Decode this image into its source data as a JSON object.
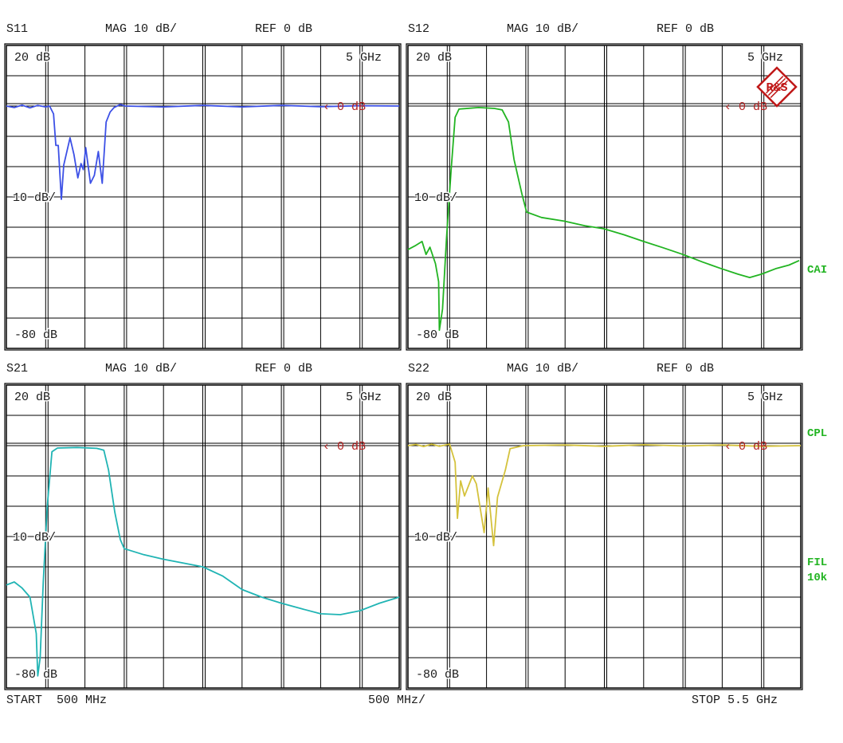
{
  "colors": {
    "grid": "#000000",
    "ref_marker": "#b22222",
    "side_labels": "#22b422"
  },
  "footer": {
    "start": "START  500 MHz",
    "span": "500 MHz/",
    "stop": "STOP 5.5 GHz"
  },
  "side_labels": {
    "cal": "CAI",
    "cpl": "CPL",
    "fil": "FIL",
    "fil_bw": "10k"
  },
  "logo": {
    "text": "R&S",
    "color": "#c01818"
  },
  "chart_data": [
    {
      "type": "line",
      "param": "S11",
      "format": "MAG 10 dB/",
      "ref": "REF 0 dB",
      "top_label": "20 dB",
      "scale_label": "10 dB/",
      "bottom_label": "-80 dB",
      "marker_label": "5 GHz",
      "ref_marker": "0 dB",
      "xlim": [
        0.5,
        5.5
      ],
      "ylim": [
        -80,
        20
      ],
      "xunit": "GHz",
      "yunit": "dB",
      "grid": true,
      "color": "#3c50e6",
      "x": [
        0.5,
        0.6,
        0.7,
        0.8,
        0.9,
        1.0,
        1.05,
        1.1,
        1.13,
        1.16,
        1.2,
        1.23,
        1.31,
        1.36,
        1.41,
        1.45,
        1.48,
        1.51,
        1.57,
        1.62,
        1.67,
        1.72,
        1.77,
        1.82,
        1.87,
        1.95,
        2.01,
        2.5,
        3.0,
        3.5,
        4.0,
        4.5,
        5.0,
        5.5
      ],
      "y": [
        0,
        -0.5,
        0.3,
        -0.6,
        0.2,
        -0.3,
        0,
        -2.6,
        -13,
        -13,
        -30.8,
        -19.5,
        -10.5,
        -16,
        -23.7,
        -19,
        -21,
        -13.7,
        -25.5,
        -22.9,
        -15,
        -25.5,
        -5.3,
        -2,
        -0.5,
        0.5,
        0,
        -0.3,
        0.2,
        -0.3,
        0.2,
        -0.2,
        0.1,
        0
      ]
    },
    {
      "type": "line",
      "param": "S12",
      "format": "MAG 10 dB/",
      "ref": "REF 0 dB",
      "top_label": "20 dB",
      "scale_label": "10 dB/",
      "bottom_label": "-80 dB",
      "marker_label": "5 GHz",
      "ref_marker": "0 dB",
      "xlim": [
        0.5,
        5.5
      ],
      "ylim": [
        -80,
        20
      ],
      "xunit": "GHz",
      "yunit": "dB",
      "grid": true,
      "color": "#22b422",
      "x": [
        0.5,
        0.6,
        0.68,
        0.73,
        0.78,
        0.85,
        0.89,
        0.9,
        0.94,
        0.99,
        1.05,
        1.1,
        1.15,
        1.4,
        1.6,
        1.7,
        1.78,
        1.85,
        1.95,
        2.01,
        2.2,
        2.49,
        2.75,
        2.99,
        3.25,
        3.5,
        3.75,
        4.0,
        4.25,
        4.48,
        4.7,
        4.85,
        5.0,
        5.19,
        5.35,
        5.48
      ],
      "y": [
        -47.4,
        -46,
        -44.7,
        -49,
        -46.6,
        -52,
        -58,
        -74,
        -67,
        -44,
        -21,
        -3.7,
        -1,
        -0.5,
        -0.8,
        -1.3,
        -5.3,
        -17.6,
        -29,
        -35,
        -36.8,
        -38,
        -39.5,
        -40.5,
        -42.5,
        -44.7,
        -46.8,
        -49,
        -51.5,
        -53.6,
        -55.5,
        -56.6,
        -55.5,
        -53.6,
        -52.5,
        -51
      ]
    },
    {
      "type": "line",
      "param": "S21",
      "format": "MAG 10 dB/",
      "ref": "REF 0 dB",
      "top_label": "20 dB",
      "scale_label": "10 dB/",
      "bottom_label": "-80 dB",
      "marker_label": "5 GHz",
      "ref_marker": "0 dB",
      "xlim": [
        0.5,
        5.5
      ],
      "ylim": [
        -80,
        20
      ],
      "xunit": "GHz",
      "yunit": "dB",
      "grid": true,
      "color": "#20b4b4",
      "x": [
        0.5,
        0.6,
        0.7,
        0.8,
        0.88,
        0.9,
        0.93,
        0.97,
        1.02,
        1.08,
        1.15,
        1.4,
        1.65,
        1.74,
        1.8,
        1.88,
        1.95,
        2.0,
        2.25,
        2.5,
        3.0,
        3.25,
        3.5,
        3.75,
        4.0,
        4.25,
        4.5,
        4.75,
        5.0,
        5.25,
        5.5
      ],
      "y": [
        -46,
        -45,
        -47,
        -50,
        -62,
        -76,
        -70,
        -45,
        -20,
        -2,
        -0.8,
        -0.6,
        -0.9,
        -1.5,
        -8,
        -22,
        -31,
        -34,
        -36,
        -37.5,
        -40,
        -43,
        -47.5,
        -50,
        -52,
        -53.8,
        -55.5,
        -55.8,
        -54.5,
        -52,
        -50
      ]
    },
    {
      "type": "line",
      "param": "S22",
      "format": "MAG 10 dB/",
      "ref": "REF 0 dB",
      "top_label": "20 dB",
      "scale_label": "10 dB/",
      "bottom_label": "-80 dB",
      "marker_label": "5 GHz",
      "ref_marker": "0 dB",
      "xlim": [
        0.5,
        5.5
      ],
      "ylim": [
        -80,
        20
      ],
      "xunit": "GHz",
      "yunit": "dB",
      "grid": true,
      "color": "#d4c23c",
      "x": [
        0.5,
        0.6,
        0.7,
        0.8,
        0.9,
        1.03,
        1.1,
        1.13,
        1.17,
        1.22,
        1.32,
        1.37,
        1.47,
        1.52,
        1.59,
        1.64,
        1.74,
        1.8,
        1.97,
        2.5,
        3.0,
        3.5,
        4.0,
        4.5,
        5.0,
        5.5
      ],
      "y": [
        0,
        0.4,
        -0.3,
        0.5,
        -0.2,
        0.5,
        -5.5,
        -24,
        -11.6,
        -16.6,
        -10,
        -12.6,
        -28.7,
        -14,
        -33,
        -17,
        -8,
        -1,
        0,
        0.2,
        -0.2,
        0.3,
        -0.1,
        0.2,
        -0.2,
        0
      ]
    }
  ]
}
